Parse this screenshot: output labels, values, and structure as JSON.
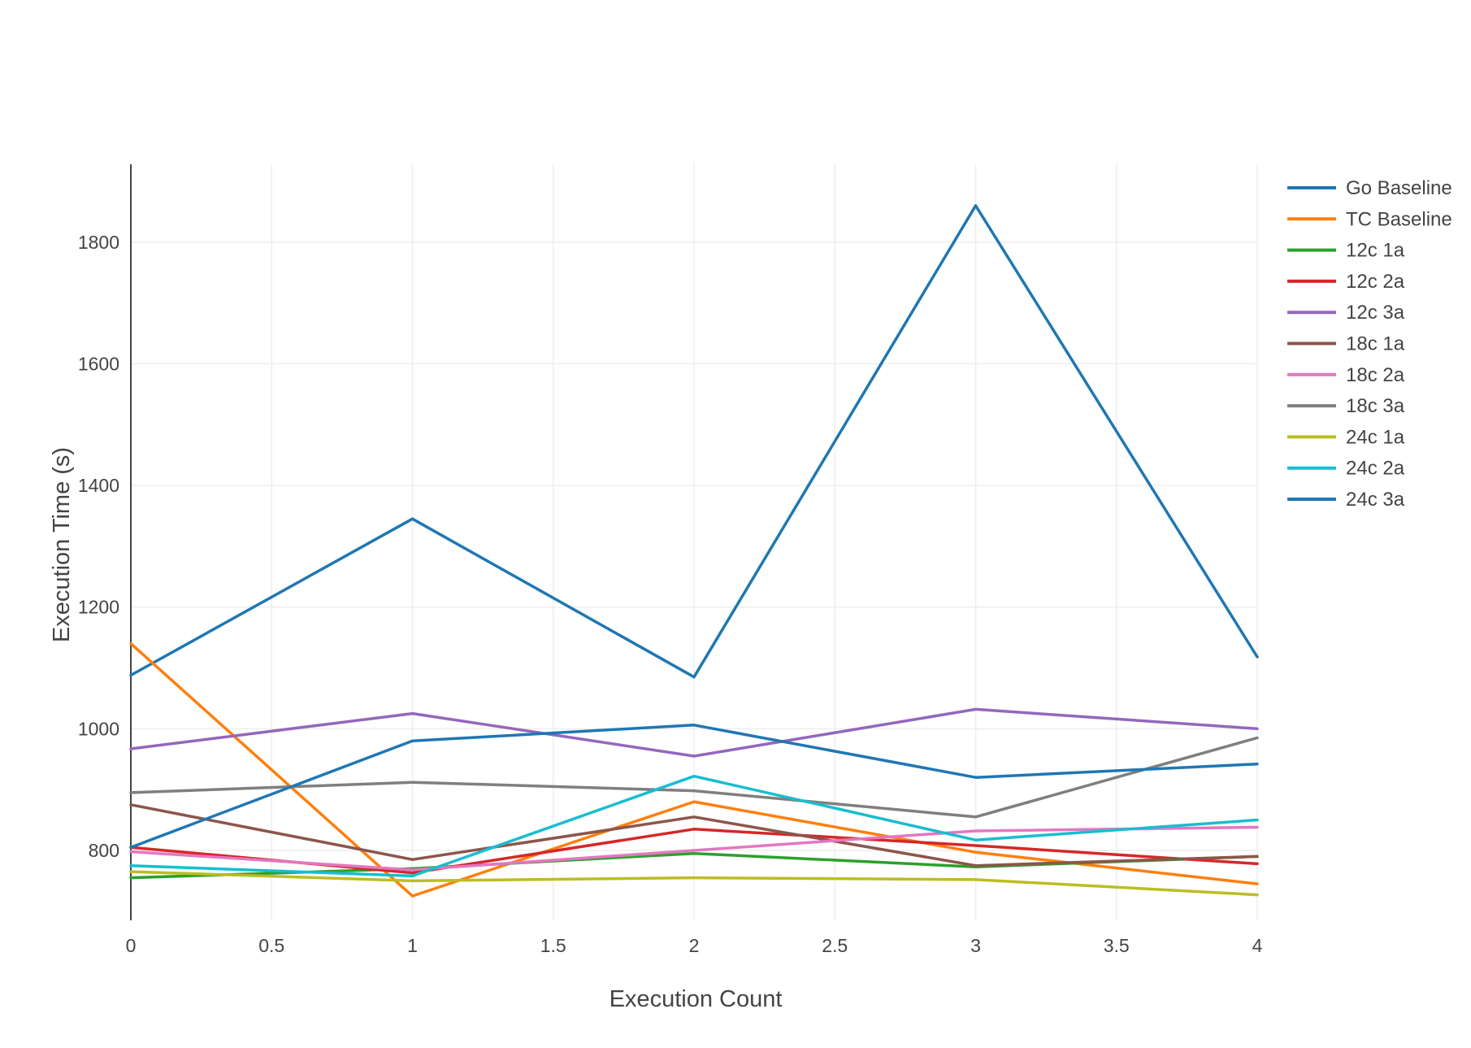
{
  "chart_data": {
    "type": "line",
    "title": "",
    "xlabel": "Execution Count",
    "ylabel": "Execution Time (s)",
    "xlim": [
      0,
      4
    ],
    "ylim": [
      685,
      1928
    ],
    "x_ticks": [
      "0",
      "0.5",
      "1",
      "1.5",
      "2",
      "2.5",
      "3",
      "3.5",
      "4"
    ],
    "y_ticks": [
      "800",
      "1000",
      "1200",
      "1400",
      "1600",
      "1800"
    ],
    "grid": true,
    "legend_position": "right",
    "x": [
      0,
      1,
      2,
      3,
      4
    ],
    "series": [
      {
        "name": "Go Baseline",
        "color": "#1f77b4",
        "values": [
          1088,
          1345,
          1085,
          1860,
          1118
        ]
      },
      {
        "name": "TC Baseline",
        "color": "#ff7f0e",
        "values": [
          1140,
          725,
          880,
          797,
          745
        ]
      },
      {
        "name": "12c 1a",
        "color": "#2ca02c",
        "values": [
          755,
          770,
          795,
          773,
          790
        ]
      },
      {
        "name": "12c 2a",
        "color": "#d62728",
        "values": [
          805,
          763,
          835,
          808,
          778
        ]
      },
      {
        "name": "12c 3a",
        "color": "#9467bd",
        "values": [
          967,
          1025,
          955,
          1032,
          1000
        ]
      },
      {
        "name": "18c 1a",
        "color": "#8c564b",
        "values": [
          875,
          785,
          855,
          775,
          790
        ]
      },
      {
        "name": "18c 2a",
        "color": "#e377c2",
        "values": [
          798,
          768,
          800,
          832,
          838
        ]
      },
      {
        "name": "18c 3a",
        "color": "#7f7f7f",
        "values": [
          895,
          912,
          898,
          855,
          985
        ]
      },
      {
        "name": "24c 1a",
        "color": "#bcbd22",
        "values": [
          765,
          750,
          755,
          752,
          727
        ]
      },
      {
        "name": "24c 2a",
        "color": "#17becf",
        "values": [
          775,
          758,
          922,
          817,
          850
        ]
      },
      {
        "name": "24c 3a",
        "color": "#1f77b4",
        "values": [
          805,
          980,
          1006,
          920,
          942
        ]
      }
    ]
  }
}
